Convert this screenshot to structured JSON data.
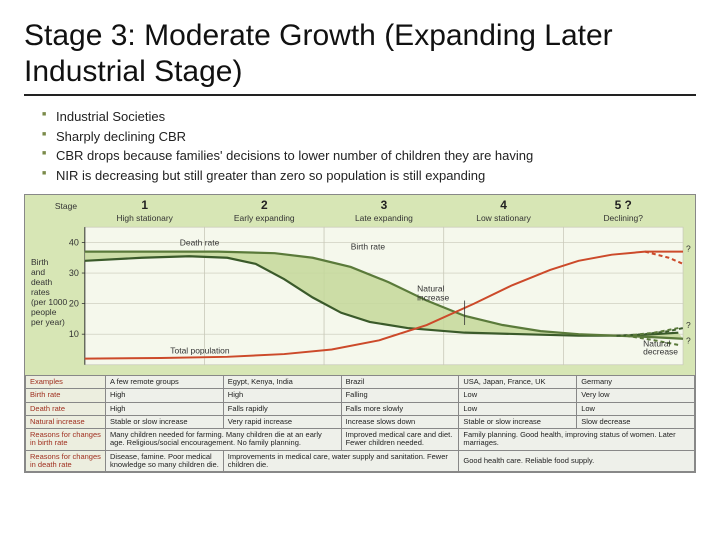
{
  "title": "Stage 3:  Moderate Growth (Expanding Later Industrial Stage)",
  "bullets": [
    "Industrial Societies",
    "Sharply declining CBR",
    "CBR drops because families' decisions to lower number of children they are having",
    "NIR is decreasing but still greater than zero so population is still expanding"
  ],
  "chart": {
    "type": "line",
    "bg_color": "#d7e6b5",
    "panel_color": "#f5f8ec",
    "grid_color": "#c8c8b8",
    "ylim": [
      0,
      45
    ],
    "yticks": [
      10,
      20,
      30,
      40
    ],
    "ylabel_lines": [
      "Birth",
      "and",
      "death",
      "rates",
      "(per 1000",
      "people",
      "per year)"
    ],
    "stage_hdr": "Stage",
    "stages": [
      {
        "num": "1",
        "label": "High stationary"
      },
      {
        "num": "2",
        "label": "Early expanding"
      },
      {
        "num": "3",
        "label": "Late expanding"
      },
      {
        "num": "4",
        "label": "Low stationary"
      },
      {
        "num": "5 ?",
        "label": "Declining?"
      }
    ],
    "birth_rate": {
      "color": "#5a7a3a",
      "width": 2.2,
      "label": "Birth rate",
      "points": [
        [
          0,
          37
        ],
        [
          80,
          37
        ],
        [
          140,
          37
        ],
        [
          200,
          36.5
        ],
        [
          240,
          35
        ],
        [
          280,
          32
        ],
        [
          320,
          27
        ],
        [
          360,
          21
        ],
        [
          400,
          16
        ],
        [
          440,
          13
        ],
        [
          480,
          11
        ],
        [
          520,
          10
        ],
        [
          560,
          9.5
        ],
        [
          600,
          9
        ],
        [
          630,
          8.5
        ]
      ]
    },
    "death_rate": {
      "color": "#3a5a2a",
      "width": 2.2,
      "label": "Death rate",
      "points": [
        [
          0,
          34
        ],
        [
          60,
          35
        ],
        [
          110,
          35.5
        ],
        [
          150,
          35
        ],
        [
          180,
          33
        ],
        [
          210,
          28
        ],
        [
          240,
          22
        ],
        [
          270,
          17
        ],
        [
          300,
          14
        ],
        [
          340,
          12
        ],
        [
          400,
          10.5
        ],
        [
          460,
          10
        ],
        [
          520,
          9.5
        ],
        [
          570,
          9.5
        ],
        [
          600,
          10
        ],
        [
          625,
          10.5
        ]
      ]
    },
    "death_rate_future": {
      "color": "#3a5a2a",
      "width": 2,
      "dash": "4 3",
      "points": [
        [
          560,
          9.5
        ],
        [
          590,
          10
        ],
        [
          615,
          11
        ],
        [
          630,
          12
        ]
      ]
    },
    "birth_rate_future_up": {
      "color": "#5a7a3a",
      "width": 2,
      "dash": "4 3",
      "points": [
        [
          570,
          9.5
        ],
        [
          600,
          10.5
        ],
        [
          625,
          12
        ]
      ]
    },
    "birth_rate_future_dn": {
      "color": "#5a7a3a",
      "width": 2,
      "dash": "4 3",
      "points": [
        [
          570,
          9.5
        ],
        [
          600,
          8
        ],
        [
          625,
          6.5
        ]
      ]
    },
    "total_pop": {
      "color": "#cc4a2a",
      "width": 2,
      "label": "Total population",
      "points": [
        [
          0,
          2
        ],
        [
          80,
          2.2
        ],
        [
          150,
          2.6
        ],
        [
          210,
          3.5
        ],
        [
          260,
          5
        ],
        [
          310,
          8
        ],
        [
          360,
          13
        ],
        [
          410,
          20
        ],
        [
          450,
          26
        ],
        [
          490,
          31
        ],
        [
          520,
          34
        ],
        [
          555,
          36
        ],
        [
          590,
          37
        ],
        [
          620,
          37
        ],
        [
          630,
          37
        ]
      ]
    },
    "total_pop_future_dn": {
      "color": "#cc4a2a",
      "width": 2,
      "dash": "4 3",
      "points": [
        [
          590,
          37
        ],
        [
          615,
          35
        ],
        [
          630,
          33
        ]
      ]
    },
    "nat_increase_label": "Natural\nincrease",
    "nat_decrease_label": "Natural\ndecrease",
    "q_marks": [
      "?",
      "?",
      "?"
    ]
  },
  "table": {
    "rows": [
      {
        "h": "Examples",
        "cells": [
          "A few remote groups",
          "Egypt, Kenya, India",
          "Brazil",
          "USA, Japan, France, UK",
          "Germany"
        ]
      },
      {
        "h": "Birth rate",
        "cells": [
          "High",
          "High",
          "Falling",
          "Low",
          "Very low"
        ]
      },
      {
        "h": "Death rate",
        "cells": [
          "High",
          "Falls rapidly",
          "Falls more slowly",
          "Low",
          "Low"
        ]
      },
      {
        "h": "Natural increase",
        "cells": [
          "Stable or slow increase",
          "Very rapid increase",
          "Increase slows down",
          "Stable or slow increase",
          "Slow decrease"
        ]
      },
      {
        "h": "Reasons for changes in birth rate",
        "cells": [
          "Many children needed for farming. Many children die at an early age. Religious/social encouragement. No family planning.",
          "",
          "Improved medical care and diet. Fewer children needed.",
          "Family planning. Good health, improving status of women. Later marriages.",
          ""
        ]
      },
      {
        "h": "Reasons for changes in death rate",
        "cells": [
          "Disease, famine. Poor medical knowledge so many children die.",
          "Improvements in medical care, water supply and sanitation. Fewer children die.",
          "",
          "Good health care. Reliable food supply.",
          ""
        ]
      }
    ]
  }
}
